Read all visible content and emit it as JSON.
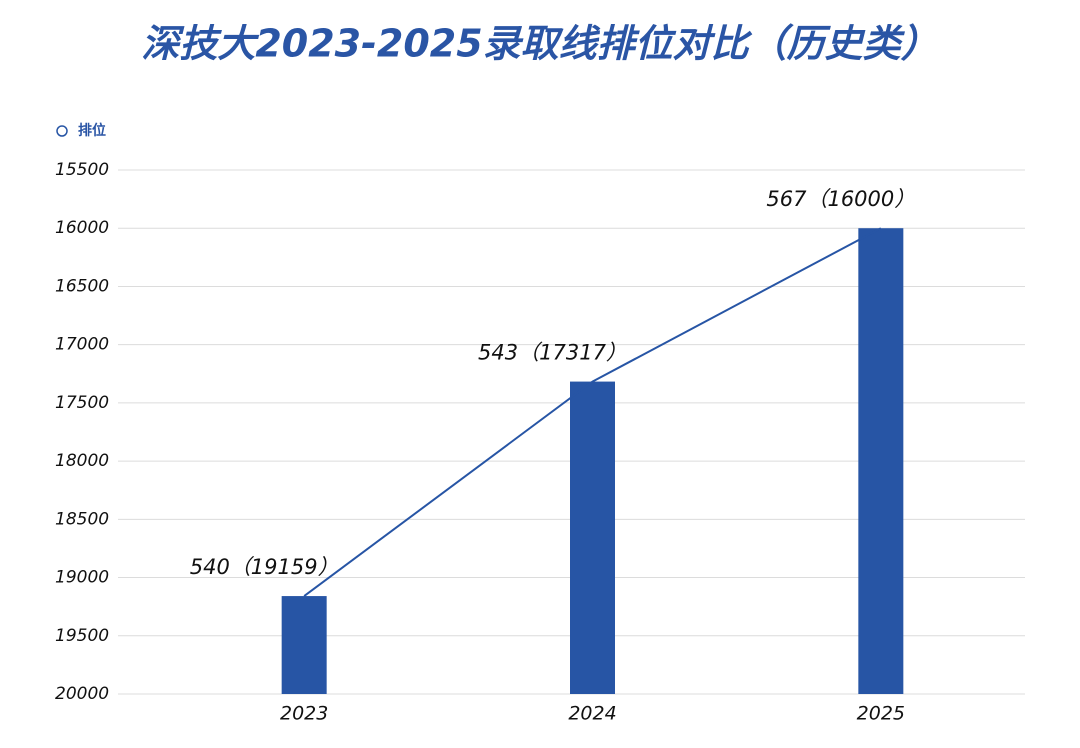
{
  "chart_data": {
    "type": "bar",
    "title": "深技大2023-2025录取线排位对比（历史类）",
    "categories": [
      "2023",
      "2024",
      "2025"
    ],
    "series": [
      {
        "name": "排位",
        "color": "#2755a5",
        "values": [
          19159,
          17317,
          16000
        ],
        "value_labels": [
          "540（19159）",
          "543（17317）",
          "567（16000）"
        ]
      }
    ],
    "ylim": [
      20000,
      15500
    ],
    "yticks": [
      15500,
      16000,
      16500,
      17000,
      17500,
      18000,
      18500,
      19000,
      19500,
      20000
    ],
    "grid": true,
    "line_overlay": true,
    "legend": "top-left"
  }
}
